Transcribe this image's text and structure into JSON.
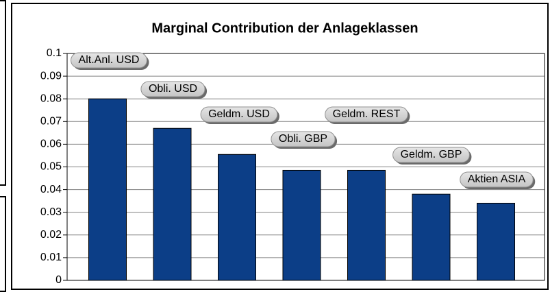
{
  "chart_data": {
    "type": "bar",
    "title": "Marginal Contribution der Anlageklassen",
    "categories": [
      "Alt.Anl. USD",
      "Obli. USD",
      "Geldm. USD",
      "Obli. GBP",
      "Geldm. REST",
      "Geldm. GBP",
      "Aktien ASIA"
    ],
    "values": [
      0.08,
      0.067,
      0.0555,
      0.0485,
      0.0485,
      0.038,
      0.034
    ],
    "color": "#0c3e87",
    "ylim": [
      0,
      0.1
    ],
    "yticks": [
      0,
      0.01,
      0.02,
      0.03,
      0.04,
      0.05,
      0.06,
      0.07,
      0.08,
      0.09,
      0.1
    ],
    "grid": true
  }
}
